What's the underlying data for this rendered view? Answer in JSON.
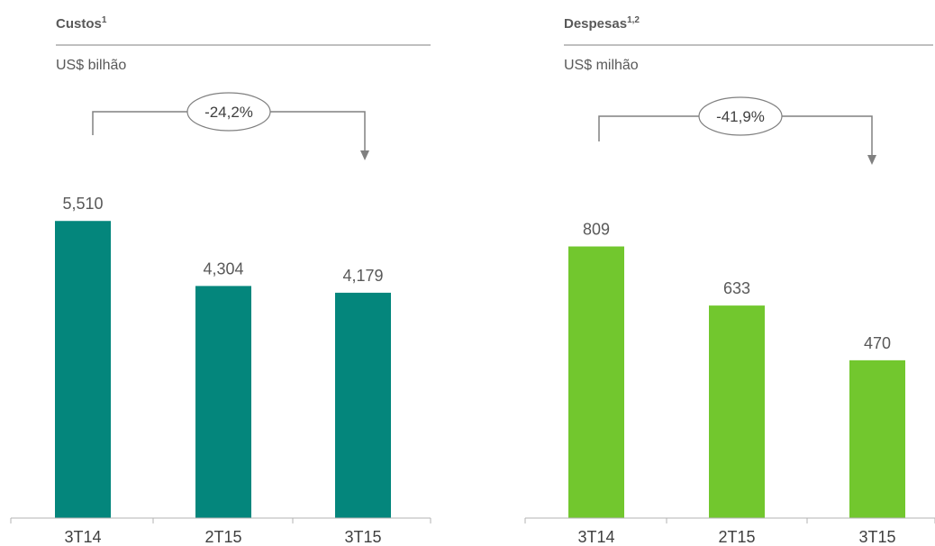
{
  "chart_data": [
    {
      "type": "bar",
      "title": "Custos",
      "title_superscript": "1",
      "ylabel": "US$ bilhão",
      "categories": [
        "3T14",
        "2T15",
        "3T15"
      ],
      "values": [
        5.51,
        4.304,
        4.179
      ],
      "value_labels": [
        "5,510",
        "4,304",
        "4,179"
      ],
      "ylim": [
        0,
        6.6
      ],
      "color": "#04867C",
      "change_label": "-24,2%",
      "grid": false
    },
    {
      "type": "bar",
      "title": "Despesas",
      "title_superscript": "1,2",
      "ylabel": "US$ milhão",
      "categories": [
        "3T14",
        "2T15",
        "3T15"
      ],
      "values": [
        809,
        633,
        470
      ],
      "value_labels": [
        "809",
        "633",
        "470"
      ],
      "ylim": [
        0,
        1060
      ],
      "color": "#72C72E",
      "change_label": "-41,9%",
      "grid": false
    }
  ]
}
